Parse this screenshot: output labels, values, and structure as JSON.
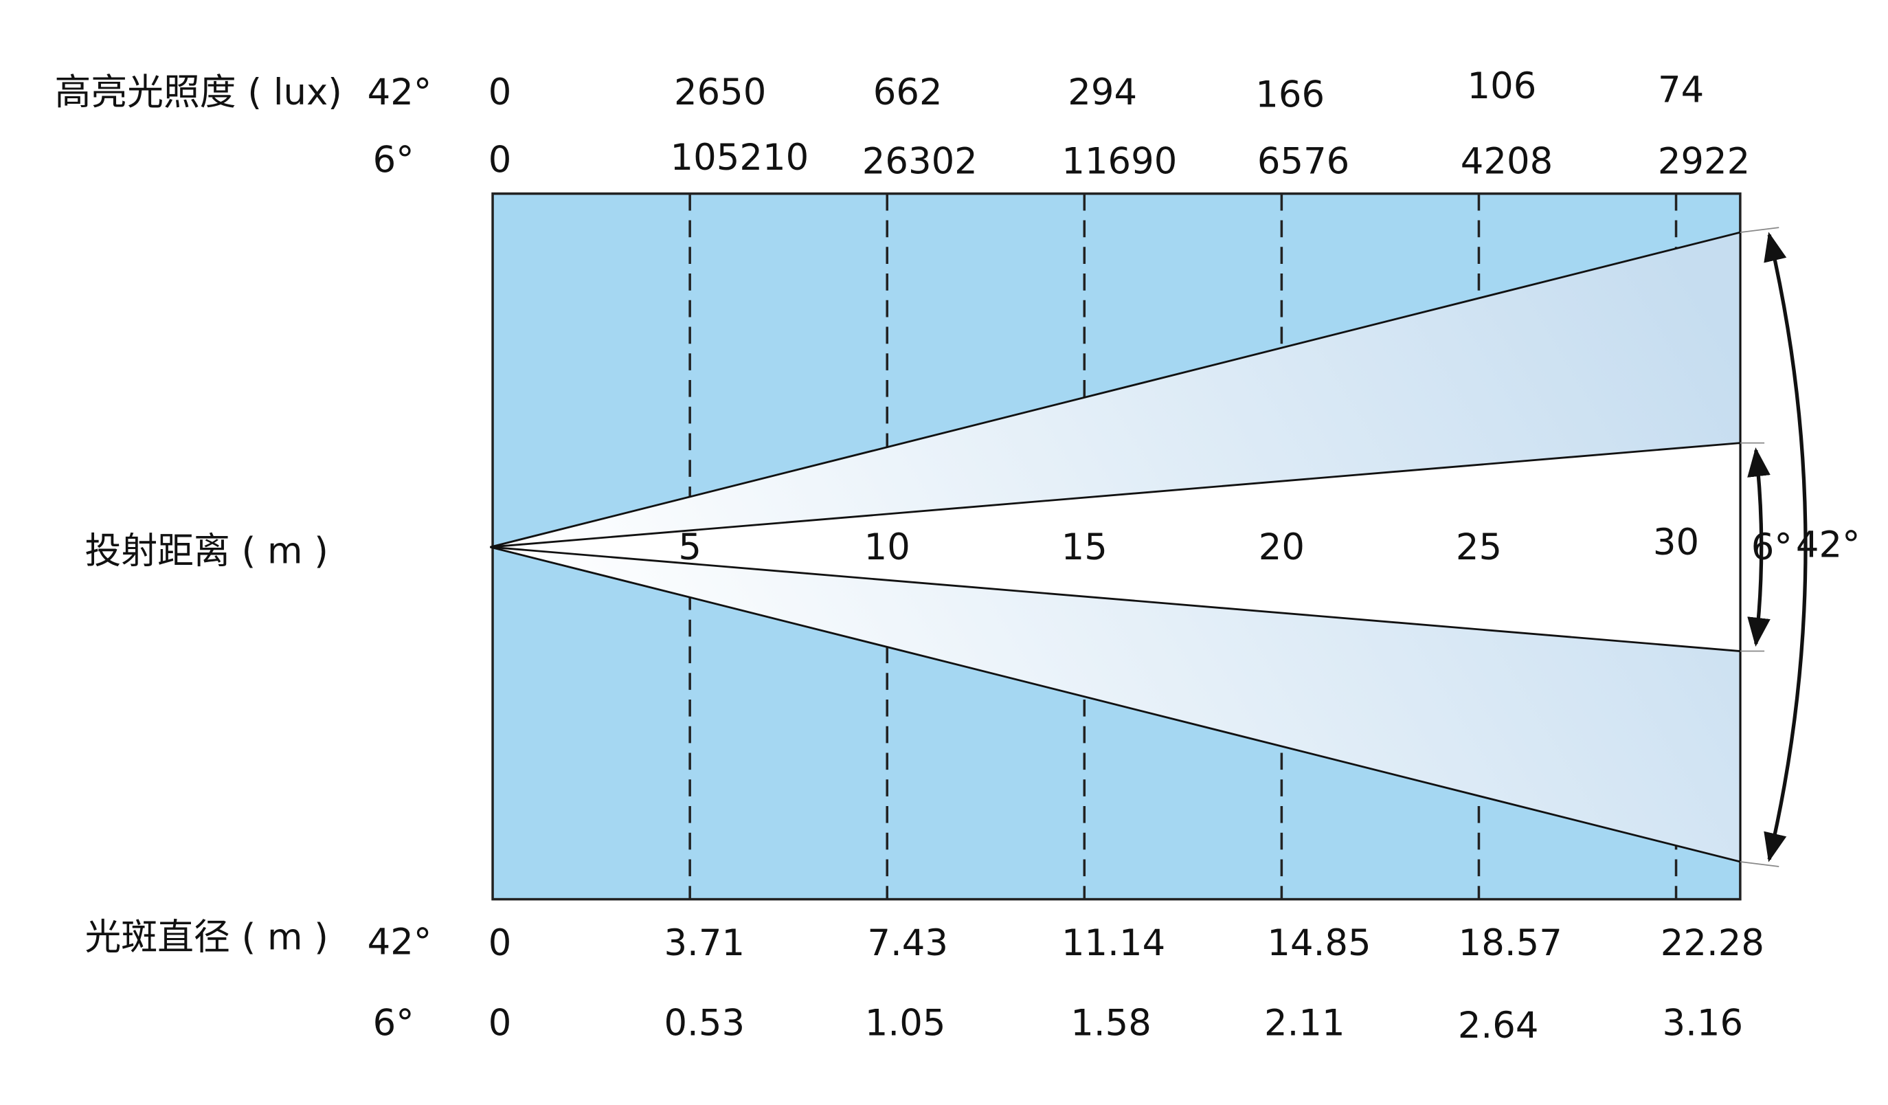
{
  "illuminance": {
    "label": "高亮光照度 ( lux)",
    "rows": [
      {
        "angle": "42°",
        "values": [
          0,
          2650,
          662,
          294,
          166,
          106,
          74
        ]
      },
      {
        "angle": "6°",
        "values": [
          0,
          105210,
          26302,
          11690,
          6576,
          4208,
          2922
        ]
      }
    ]
  },
  "distance": {
    "label": "投射距离 ( m )",
    "values": [
      5,
      10,
      15,
      20,
      25,
      30
    ]
  },
  "spot": {
    "label": "光斑直径 ( m )",
    "rows": [
      {
        "angle": "42°",
        "values": [
          0,
          3.71,
          7.43,
          11.14,
          14.85,
          18.57,
          22.28
        ]
      },
      {
        "angle": "6°",
        "values": [
          0,
          0.53,
          1.05,
          1.58,
          2.11,
          2.64,
          3.16
        ]
      }
    ]
  },
  "beam_angles": [
    "6°",
    "42°"
  ]
}
